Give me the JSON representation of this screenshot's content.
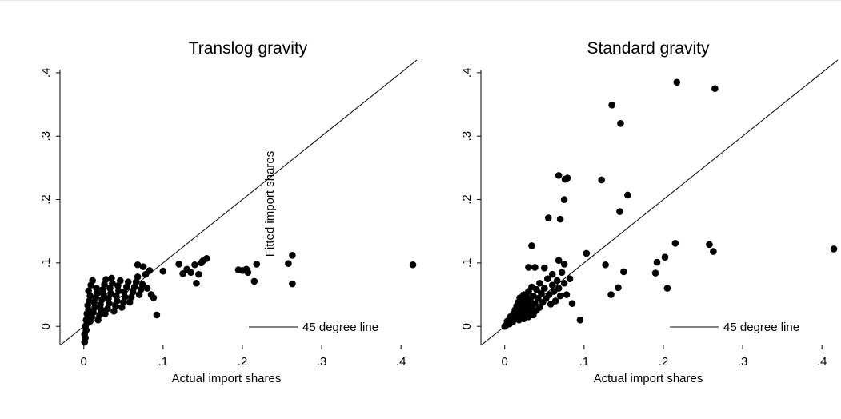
{
  "chart_data": [
    {
      "type": "scatter",
      "title": "Translog gravity",
      "xlabel": "Actual import shares",
      "ylabel": "Fitted import shares",
      "xlim": [
        -0.03,
        0.42
      ],
      "ylim": [
        -0.03,
        0.42
      ],
      "xticks": [
        0,
        0.1,
        0.2,
        0.3,
        0.4
      ],
      "xtick_labels": [
        "0",
        ".1",
        ".2",
        ".3",
        ".4"
      ],
      "yticks": [
        0,
        0.1,
        0.2,
        0.3,
        0.4
      ],
      "ytick_labels": [
        "0",
        ".1",
        ".2",
        ".3",
        ".4"
      ],
      "reference_line": {
        "label": "45 degree line",
        "slope": 1,
        "intercept": 0
      },
      "legend": {
        "position": "bottom-right",
        "entries": [
          "45 degree line"
        ]
      },
      "grid": false,
      "points": [
        {
          "x": 0.001,
          "y": -0.025
        },
        {
          "x": 0.002,
          "y": -0.018
        },
        {
          "x": 0.001,
          "y": -0.012
        },
        {
          "x": 0.003,
          "y": -0.006
        },
        {
          "x": 0.002,
          "y": 0.0
        },
        {
          "x": 0.004,
          "y": 0.005
        },
        {
          "x": 0.003,
          "y": 0.01
        },
        {
          "x": 0.005,
          "y": 0.015
        },
        {
          "x": 0.004,
          "y": 0.02
        },
        {
          "x": 0.006,
          "y": 0.026
        },
        {
          "x": 0.005,
          "y": 0.033
        },
        {
          "x": 0.007,
          "y": 0.04
        },
        {
          "x": 0.008,
          "y": 0.048
        },
        {
          "x": 0.006,
          "y": 0.056
        },
        {
          "x": 0.009,
          "y": 0.065
        },
        {
          "x": 0.011,
          "y": 0.072
        },
        {
          "x": 0.008,
          "y": 0.008
        },
        {
          "x": 0.01,
          "y": 0.015
        },
        {
          "x": 0.012,
          "y": 0.022
        },
        {
          "x": 0.014,
          "y": 0.03
        },
        {
          "x": 0.013,
          "y": 0.038
        },
        {
          "x": 0.015,
          "y": 0.045
        },
        {
          "x": 0.017,
          "y": 0.052
        },
        {
          "x": 0.016,
          "y": 0.06
        },
        {
          "x": 0.018,
          "y": 0.01
        },
        {
          "x": 0.02,
          "y": 0.018
        },
        {
          "x": 0.022,
          "y": 0.026
        },
        {
          "x": 0.021,
          "y": 0.034
        },
        {
          "x": 0.023,
          "y": 0.042
        },
        {
          "x": 0.025,
          "y": 0.05
        },
        {
          "x": 0.024,
          "y": 0.058
        },
        {
          "x": 0.026,
          "y": 0.066
        },
        {
          "x": 0.028,
          "y": 0.074
        },
        {
          "x": 0.027,
          "y": 0.02
        },
        {
          "x": 0.03,
          "y": 0.028
        },
        {
          "x": 0.032,
          "y": 0.036
        },
        {
          "x": 0.031,
          "y": 0.044
        },
        {
          "x": 0.034,
          "y": 0.052
        },
        {
          "x": 0.033,
          "y": 0.06
        },
        {
          "x": 0.036,
          "y": 0.068
        },
        {
          "x": 0.035,
          "y": 0.076
        },
        {
          "x": 0.038,
          "y": 0.024
        },
        {
          "x": 0.04,
          "y": 0.032
        },
        {
          "x": 0.042,
          "y": 0.04
        },
        {
          "x": 0.041,
          "y": 0.048
        },
        {
          "x": 0.044,
          "y": 0.056
        },
        {
          "x": 0.043,
          "y": 0.064
        },
        {
          "x": 0.046,
          "y": 0.072
        },
        {
          "x": 0.048,
          "y": 0.03
        },
        {
          "x": 0.05,
          "y": 0.038
        },
        {
          "x": 0.052,
          "y": 0.046
        },
        {
          "x": 0.051,
          "y": 0.054
        },
        {
          "x": 0.054,
          "y": 0.062
        },
        {
          "x": 0.056,
          "y": 0.07
        },
        {
          "x": 0.058,
          "y": 0.038
        },
        {
          "x": 0.06,
          "y": 0.046
        },
        {
          "x": 0.062,
          "y": 0.054
        },
        {
          "x": 0.064,
          "y": 0.062
        },
        {
          "x": 0.066,
          "y": 0.07
        },
        {
          "x": 0.068,
          "y": 0.078
        },
        {
          "x": 0.07,
          "y": 0.05
        },
        {
          "x": 0.072,
          "y": 0.058
        },
        {
          "x": 0.074,
          "y": 0.066
        },
        {
          "x": 0.068,
          "y": 0.097
        },
        {
          "x": 0.075,
          "y": 0.094
        },
        {
          "x": 0.078,
          "y": 0.082
        },
        {
          "x": 0.08,
          "y": 0.06
        },
        {
          "x": 0.083,
          "y": 0.088
        },
        {
          "x": 0.085,
          "y": 0.05
        },
        {
          "x": 0.088,
          "y": 0.045
        },
        {
          "x": 0.092,
          "y": 0.018
        },
        {
          "x": 0.1,
          "y": 0.087
        },
        {
          "x": 0.12,
          "y": 0.098
        },
        {
          "x": 0.125,
          "y": 0.083
        },
        {
          "x": 0.13,
          "y": 0.09
        },
        {
          "x": 0.135,
          "y": 0.085
        },
        {
          "x": 0.14,
          "y": 0.097
        },
        {
          "x": 0.142,
          "y": 0.068
        },
        {
          "x": 0.145,
          "y": 0.082
        },
        {
          "x": 0.148,
          "y": 0.1
        },
        {
          "x": 0.15,
          "y": 0.103
        },
        {
          "x": 0.155,
          "y": 0.107
        },
        {
          "x": 0.195,
          "y": 0.089
        },
        {
          "x": 0.2,
          "y": 0.088
        },
        {
          "x": 0.205,
          "y": 0.09
        },
        {
          "x": 0.207,
          "y": 0.085
        },
        {
          "x": 0.215,
          "y": 0.071
        },
        {
          "x": 0.218,
          "y": 0.098
        },
        {
          "x": 0.258,
          "y": 0.099
        },
        {
          "x": 0.263,
          "y": 0.112
        },
        {
          "x": 0.263,
          "y": 0.067
        },
        {
          "x": 0.415,
          "y": 0.097
        }
      ]
    },
    {
      "type": "scatter",
      "title": "Standard gravity",
      "xlabel": "Actual import shares",
      "ylabel": "",
      "xlim": [
        -0.03,
        0.42
      ],
      "ylim": [
        -0.03,
        0.42
      ],
      "xticks": [
        0,
        0.1,
        0.2,
        0.3,
        0.4
      ],
      "xtick_labels": [
        "0",
        ".1",
        ".2",
        ".3",
        ".4"
      ],
      "yticks": [
        0,
        0.1,
        0.2,
        0.3,
        0.4
      ],
      "ytick_labels": [
        "0",
        ".1",
        ".2",
        ".3",
        ".4"
      ],
      "reference_line": {
        "label": "45 degree line",
        "slope": 1,
        "intercept": 0
      },
      "legend": {
        "position": "bottom-right",
        "entries": [
          "45 degree line"
        ]
      },
      "grid": false,
      "points": [
        {
          "x": 0.0,
          "y": 0.0
        },
        {
          "x": 0.002,
          "y": 0.002
        },
        {
          "x": 0.004,
          "y": 0.005
        },
        {
          "x": 0.003,
          "y": 0.008
        },
        {
          "x": 0.006,
          "y": 0.004
        },
        {
          "x": 0.008,
          "y": 0.01
        },
        {
          "x": 0.007,
          "y": 0.015
        },
        {
          "x": 0.01,
          "y": 0.007
        },
        {
          "x": 0.012,
          "y": 0.012
        },
        {
          "x": 0.011,
          "y": 0.02
        },
        {
          "x": 0.014,
          "y": 0.016
        },
        {
          "x": 0.013,
          "y": 0.026
        },
        {
          "x": 0.016,
          "y": 0.022
        },
        {
          "x": 0.015,
          "y": 0.032
        },
        {
          "x": 0.018,
          "y": 0.01
        },
        {
          "x": 0.018,
          "y": 0.028
        },
        {
          "x": 0.017,
          "y": 0.038
        },
        {
          "x": 0.02,
          "y": 0.018
        },
        {
          "x": 0.02,
          "y": 0.034
        },
        {
          "x": 0.019,
          "y": 0.045
        },
        {
          "x": 0.022,
          "y": 0.024
        },
        {
          "x": 0.022,
          "y": 0.04
        },
        {
          "x": 0.024,
          "y": 0.012
        },
        {
          "x": 0.024,
          "y": 0.03
        },
        {
          "x": 0.024,
          "y": 0.05
        },
        {
          "x": 0.026,
          "y": 0.02
        },
        {
          "x": 0.026,
          "y": 0.038
        },
        {
          "x": 0.028,
          "y": 0.027
        },
        {
          "x": 0.028,
          "y": 0.046
        },
        {
          "x": 0.03,
          "y": 0.015
        },
        {
          "x": 0.03,
          "y": 0.034
        },
        {
          "x": 0.03,
          "y": 0.055
        },
        {
          "x": 0.032,
          "y": 0.024
        },
        {
          "x": 0.032,
          "y": 0.042
        },
        {
          "x": 0.034,
          "y": 0.03
        },
        {
          "x": 0.034,
          "y": 0.062
        },
        {
          "x": 0.036,
          "y": 0.018
        },
        {
          "x": 0.036,
          "y": 0.048
        },
        {
          "x": 0.038,
          "y": 0.036
        },
        {
          "x": 0.04,
          "y": 0.025
        },
        {
          "x": 0.04,
          "y": 0.058
        },
        {
          "x": 0.042,
          "y": 0.044
        },
        {
          "x": 0.044,
          "y": 0.03
        },
        {
          "x": 0.044,
          "y": 0.068
        },
        {
          "x": 0.046,
          "y": 0.052
        },
        {
          "x": 0.048,
          "y": 0.038
        },
        {
          "x": 0.05,
          "y": 0.06
        },
        {
          "x": 0.052,
          "y": 0.044
        },
        {
          "x": 0.054,
          "y": 0.075
        },
        {
          "x": 0.056,
          "y": 0.05
        },
        {
          "x": 0.058,
          "y": 0.035
        },
        {
          "x": 0.06,
          "y": 0.065
        },
        {
          "x": 0.062,
          "y": 0.055
        },
        {
          "x": 0.064,
          "y": 0.04
        },
        {
          "x": 0.066,
          "y": 0.072
        },
        {
          "x": 0.068,
          "y": 0.06
        },
        {
          "x": 0.07,
          "y": 0.048
        },
        {
          "x": 0.072,
          "y": 0.085
        },
        {
          "x": 0.075,
          "y": 0.068
        },
        {
          "x": 0.078,
          "y": 0.05
        },
        {
          "x": 0.082,
          "y": 0.075
        },
        {
          "x": 0.085,
          "y": 0.036
        },
        {
          "x": 0.03,
          "y": 0.093
        },
        {
          "x": 0.034,
          "y": 0.127
        },
        {
          "x": 0.038,
          "y": 0.093
        },
        {
          "x": 0.05,
          "y": 0.092
        },
        {
          "x": 0.055,
          "y": 0.171
        },
        {
          "x": 0.06,
          "y": 0.082
        },
        {
          "x": 0.068,
          "y": 0.238
        },
        {
          "x": 0.07,
          "y": 0.169
        },
        {
          "x": 0.075,
          "y": 0.2
        },
        {
          "x": 0.076,
          "y": 0.232
        },
        {
          "x": 0.079,
          "y": 0.234
        },
        {
          "x": 0.068,
          "y": 0.104
        },
        {
          "x": 0.075,
          "y": 0.098
        },
        {
          "x": 0.095,
          "y": 0.01
        },
        {
          "x": 0.103,
          "y": 0.115
        },
        {
          "x": 0.122,
          "y": 0.231
        },
        {
          "x": 0.127,
          "y": 0.097
        },
        {
          "x": 0.135,
          "y": 0.349
        },
        {
          "x": 0.134,
          "y": 0.05
        },
        {
          "x": 0.143,
          "y": 0.061
        },
        {
          "x": 0.145,
          "y": 0.181
        },
        {
          "x": 0.146,
          "y": 0.32
        },
        {
          "x": 0.15,
          "y": 0.086
        },
        {
          "x": 0.155,
          "y": 0.207
        },
        {
          "x": 0.19,
          "y": 0.084
        },
        {
          "x": 0.192,
          "y": 0.101
        },
        {
          "x": 0.202,
          "y": 0.109
        },
        {
          "x": 0.205,
          "y": 0.06
        },
        {
          "x": 0.215,
          "y": 0.131
        },
        {
          "x": 0.217,
          "y": 0.385
        },
        {
          "x": 0.258,
          "y": 0.129
        },
        {
          "x": 0.263,
          "y": 0.118
        },
        {
          "x": 0.265,
          "y": 0.375
        },
        {
          "x": 0.415,
          "y": 0.122
        }
      ]
    }
  ]
}
